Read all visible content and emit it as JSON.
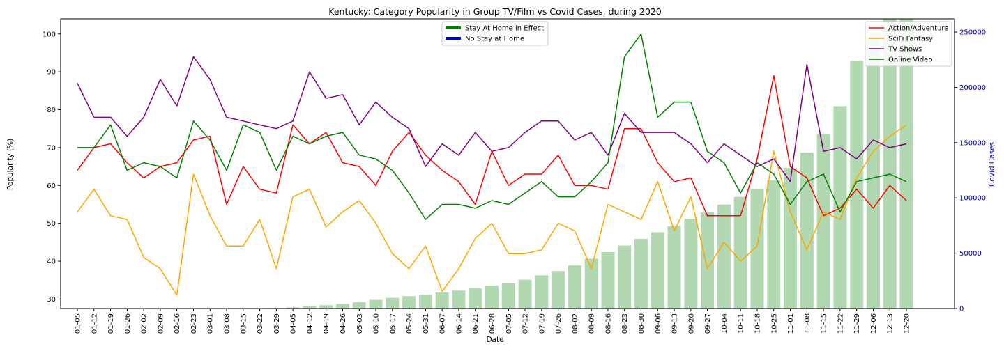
{
  "chart_data": {
    "type": "line",
    "title": "Kentucky: Category Popularity in Group TV/Film vs Covid Cases, during 2020",
    "xlabel": "Date",
    "ylabel": "Popularity (%)",
    "y2label": "Covid Cases",
    "ylim": [
      27.5,
      104
    ],
    "y2lim": [
      0,
      262000
    ],
    "yticks": [
      "30",
      "40",
      "50",
      "60",
      "70",
      "80",
      "90",
      "100"
    ],
    "y2ticks": [
      "0",
      "50000",
      "100000",
      "150000",
      "200000",
      "250000"
    ],
    "grid": false,
    "categories": [
      "01-05",
      "01-12",
      "01-19",
      "01-26",
      "02-02",
      "02-09",
      "02-16",
      "02-23",
      "03-01",
      "03-08",
      "03-15",
      "03-22",
      "03-29",
      "04-05",
      "04-12",
      "04-19",
      "04-26",
      "05-03",
      "05-10",
      "05-17",
      "05-24",
      "05-31",
      "06-07",
      "06-14",
      "06-21",
      "06-28",
      "07-05",
      "07-12",
      "07-19",
      "07-26",
      "08-02",
      "08-09",
      "08-16",
      "08-23",
      "08-30",
      "09-06",
      "09-13",
      "09-20",
      "09-27",
      "10-04",
      "10-11",
      "10-18",
      "10-25",
      "11-01",
      "11-08",
      "11-15",
      "11-22",
      "11-29",
      "12-06",
      "12-13",
      "12-20"
    ],
    "series": [
      {
        "name": "Action/Adventure",
        "color": "#ff0000",
        "values": [
          64,
          70,
          71,
          66,
          62,
          65,
          66,
          72,
          73,
          55,
          65,
          59,
          58,
          76,
          71,
          74,
          66,
          65,
          60,
          69,
          74,
          68,
          64,
          61,
          55,
          69,
          60,
          63,
          63,
          68,
          60,
          60,
          59,
          75,
          75,
          66,
          61,
          62,
          52,
          52,
          52,
          67,
          89,
          65,
          62,
          52,
          54,
          59,
          54,
          60,
          56
        ]
      },
      {
        "name": "SciFi Fantasy",
        "color": "#ffa500",
        "values": [
          53,
          59,
          52,
          51,
          41,
          38,
          31,
          63,
          52,
          44,
          44,
          51,
          38,
          57,
          59,
          49,
          53,
          56,
          50,
          42,
          38,
          44,
          32,
          38,
          46,
          50,
          42,
          42,
          43,
          50,
          48,
          38,
          55,
          53,
          51,
          61,
          48,
          57,
          38,
          45,
          40,
          44,
          69,
          53,
          43,
          53,
          51,
          62,
          69,
          73,
          76
        ]
      },
      {
        "name": "TV Shows",
        "color": "#800080",
        "values": [
          87,
          78,
          78,
          73,
          78,
          88,
          81,
          94,
          88,
          78,
          77,
          76,
          75,
          77,
          90,
          83,
          84,
          76,
          82,
          78,
          75,
          65,
          71,
          68,
          74,
          69,
          70,
          74,
          77,
          77,
          72,
          74,
          68,
          79,
          74,
          74,
          74,
          71,
          66,
          71,
          68,
          65,
          67,
          61,
          92,
          69,
          70,
          67,
          72,
          70,
          71
        ]
      },
      {
        "name": "Online Video",
        "color": "#008000",
        "values": [
          70,
          70,
          76,
          64,
          66,
          65,
          62,
          77,
          72,
          64,
          76,
          74,
          64,
          73,
          71,
          73,
          74,
          68,
          67,
          64,
          58,
          51,
          55,
          55,
          54,
          56,
          55,
          58,
          61,
          57,
          57,
          61,
          66,
          94,
          100,
          78,
          82,
          82,
          69,
          66,
          58,
          66,
          63,
          55,
          61,
          63,
          53,
          61,
          62,
          63,
          61
        ]
      }
    ],
    "bars": {
      "name": "Covid Cases",
      "color": "#b2d8b2",
      "values": [
        0,
        0,
        0,
        0,
        0,
        0,
        0,
        0,
        0,
        0,
        0,
        0,
        480,
        1000,
        1900,
        3000,
        4200,
        5800,
        7800,
        9700,
        11200,
        12500,
        14500,
        16200,
        18200,
        20600,
        22800,
        26000,
        30000,
        34000,
        39000,
        45000,
        51000,
        57000,
        63000,
        69000,
        74500,
        81000,
        87000,
        94000,
        101000,
        108000,
        116000,
        127000,
        141000,
        158000,
        183000,
        224000,
        246000,
        281000,
        313000
      ]
    },
    "legend_overlay": [
      {
        "label": "Stay At Home in Effect",
        "color": "#008000"
      },
      {
        "label": "No Stay at Home",
        "color": "#0000cc"
      }
    ],
    "legend_placement": "top-right",
    "overlay_legend_placement": "top-center"
  }
}
